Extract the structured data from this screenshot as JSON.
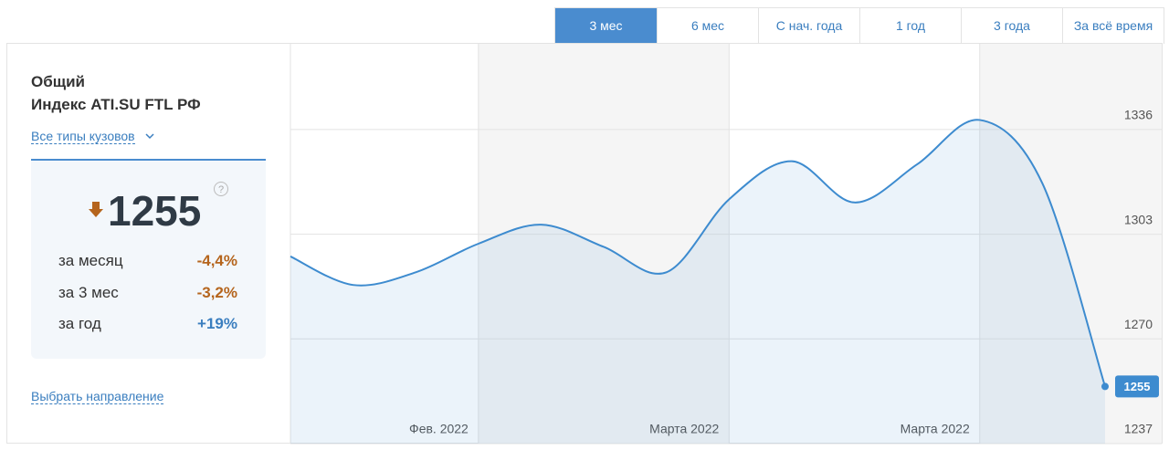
{
  "tabs": [
    "3 мес",
    "6 мес",
    "С нач. года",
    "1 год",
    "3 года",
    "За всё время"
  ],
  "active_tab": 0,
  "panel": {
    "title_1": "Общий",
    "title_2": "Индекс ATI.SU FTL РФ",
    "body_filter": "Все типы кузовов",
    "value": "1255",
    "changes": [
      {
        "label": "за месяц",
        "value": "-4,4%"
      },
      {
        "label": "за 3 мес",
        "value": "-3,2%"
      },
      {
        "label": "за год",
        "value": "+19%"
      }
    ],
    "link": "Выбрать направление"
  },
  "chart_data": {
    "type": "line",
    "x": [
      0,
      1,
      2,
      3,
      4,
      5,
      6,
      7,
      8,
      9,
      10,
      11,
      12,
      13
    ],
    "series": [
      {
        "name": "Индекс ATI.SU FTL РФ",
        "color": "#3d8bcf",
        "values": [
          1296,
          1287,
          1291,
          1300,
          1306,
          1299,
          1291,
          1314,
          1326,
          1313,
          1325,
          1339,
          1319,
          1255
        ]
      }
    ],
    "xlim": [
      0,
      13
    ],
    "xticks": [
      {
        "value": 3,
        "label": "Фев. 2022"
      },
      {
        "value": 7,
        "label": "Марта 2022"
      },
      {
        "value": 11,
        "label": "Марта 2022"
      }
    ],
    "ylim": [
      1237,
      1363
    ],
    "yticks": [
      1237,
      1270,
      1303,
      1336
    ],
    "grid": true
  }
}
